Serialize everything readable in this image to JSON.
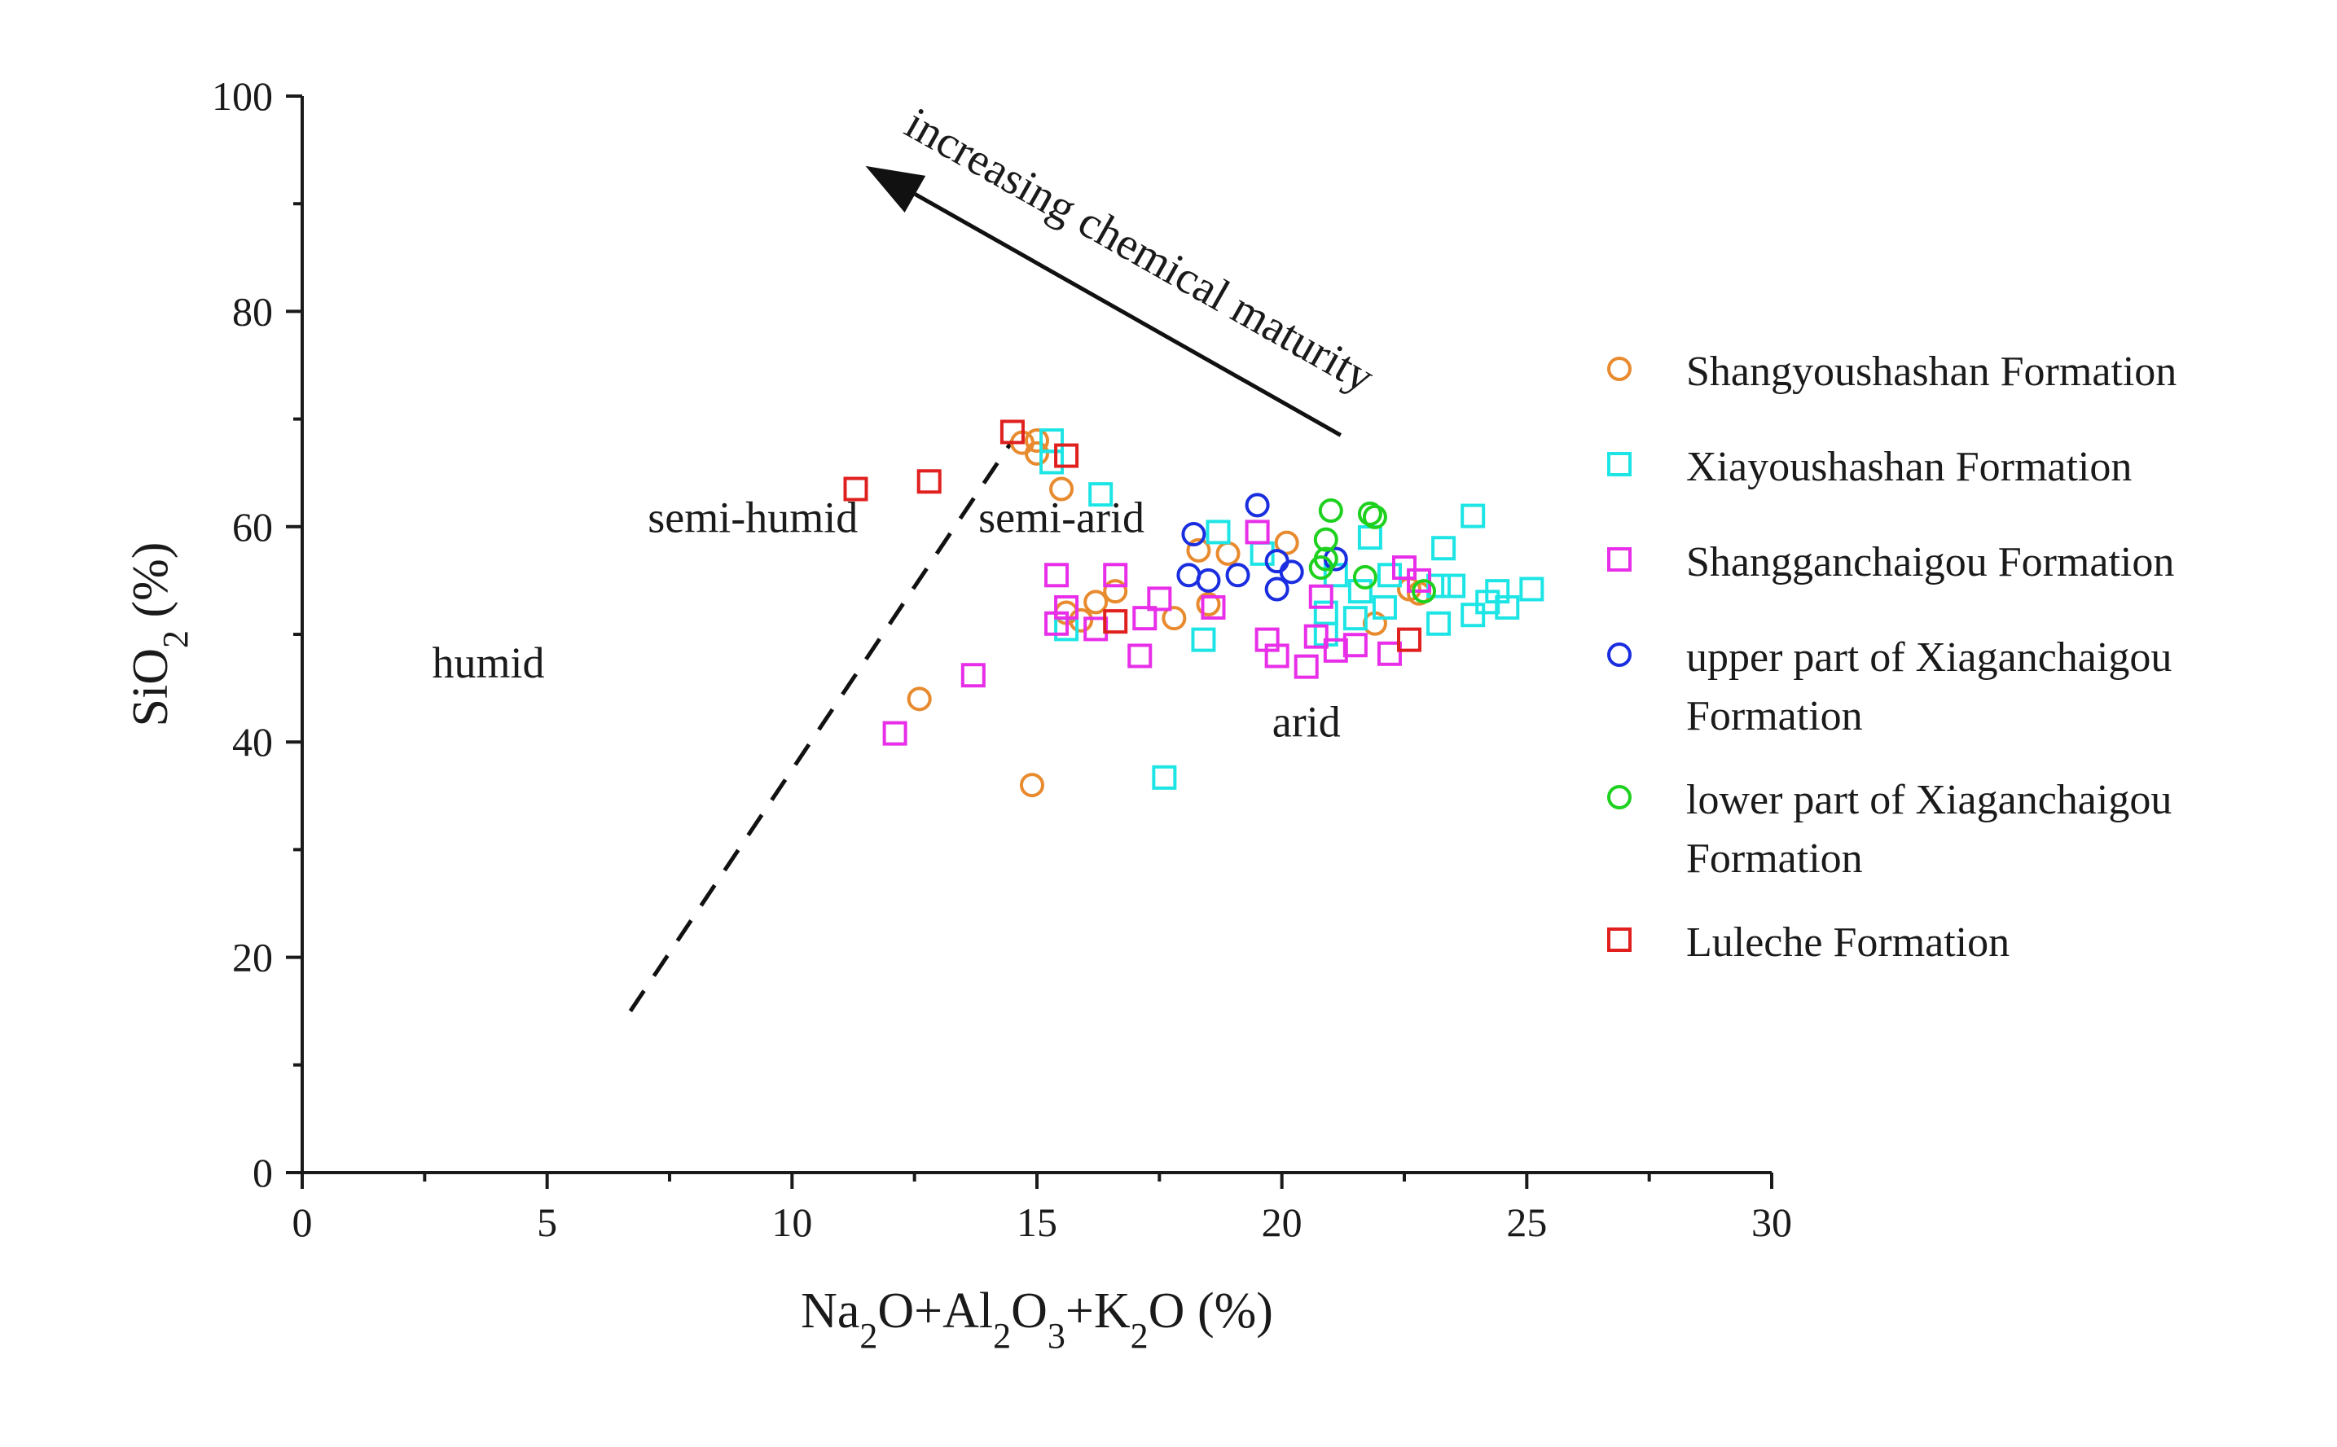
{
  "chart_data": {
    "type": "scatter",
    "title": "",
    "xlabel": "Na2O+Al2O3+K2O (%)",
    "ylabel": "SiO2 (%)",
    "xlim": [
      0,
      30
    ],
    "ylim": [
      0,
      100
    ],
    "xticks": [
      0,
      5,
      10,
      15,
      20,
      25,
      30
    ],
    "yticks": [
      0,
      20,
      40,
      60,
      80,
      100
    ],
    "grid": false,
    "legend_position": "right",
    "regions": [
      {
        "label": "humid",
        "x": 3.8,
        "y": 46
      },
      {
        "label": "semi-humid",
        "x": 9.2,
        "y": 59.5
      },
      {
        "label": "semi-arid",
        "x": 15.5,
        "y": 59.5
      },
      {
        "label": "arid",
        "x": 20.5,
        "y": 40.5
      }
    ],
    "boundary_line": {
      "label": "semi-humid / semi-arid boundary",
      "style": "dashed",
      "x": [
        6.7,
        14.5
      ],
      "y": [
        15,
        68
      ]
    },
    "trend_arrow": {
      "label": "increasing chemical maturity",
      "from": [
        21.2,
        68.5
      ],
      "to": [
        11.5,
        93.5
      ]
    },
    "series": [
      {
        "name": "Shangyoushashan Formation",
        "marker": "circle",
        "color": "#E88A2E",
        "points": [
          [
            14.7,
            67.8
          ],
          [
            15.0,
            68.0
          ],
          [
            15.0,
            66.8
          ],
          [
            15.5,
            63.5
          ],
          [
            20.1,
            58.5
          ],
          [
            18.9,
            57.5
          ],
          [
            18.3,
            57.8
          ],
          [
            18.5,
            52.8
          ],
          [
            17.8,
            51.5
          ],
          [
            16.2,
            53.0
          ],
          [
            16.6,
            54.0
          ],
          [
            15.6,
            52.0
          ],
          [
            15.9,
            51.3
          ],
          [
            21.9,
            51.0
          ],
          [
            22.8,
            53.8
          ],
          [
            22.6,
            54.2
          ],
          [
            12.6,
            44.0
          ],
          [
            14.9,
            36.0
          ]
        ]
      },
      {
        "name": "Xiayoushashan Formation",
        "marker": "square",
        "color": "#1EE5E5",
        "points": [
          [
            15.3,
            68.0
          ],
          [
            15.3,
            66.0
          ],
          [
            16.3,
            63.0
          ],
          [
            18.7,
            59.5
          ],
          [
            19.6,
            57.5
          ],
          [
            21.8,
            59.0
          ],
          [
            21.1,
            55.5
          ],
          [
            23.9,
            61.0
          ],
          [
            23.3,
            58.0
          ],
          [
            22.2,
            55.5
          ],
          [
            23.2,
            54.5
          ],
          [
            23.5,
            54.5
          ],
          [
            24.4,
            54.0
          ],
          [
            25.1,
            54.2
          ],
          [
            24.2,
            53.0
          ],
          [
            24.6,
            52.5
          ],
          [
            23.9,
            51.8
          ],
          [
            23.2,
            51.0
          ],
          [
            22.1,
            52.5
          ],
          [
            21.6,
            54.0
          ],
          [
            20.9,
            52.0
          ],
          [
            20.9,
            50.0
          ],
          [
            21.5,
            51.5
          ],
          [
            18.4,
            49.5
          ],
          [
            17.6,
            36.7
          ],
          [
            15.6,
            50.5
          ]
        ]
      },
      {
        "name": "Shangganchaigou Formation",
        "marker": "square",
        "color": "#E82EE8",
        "points": [
          [
            15.4,
            55.5
          ],
          [
            16.6,
            55.5
          ],
          [
            19.5,
            59.5
          ],
          [
            15.6,
            52.5
          ],
          [
            16.2,
            50.5
          ],
          [
            17.2,
            51.5
          ],
          [
            17.5,
            53.3
          ],
          [
            18.6,
            52.5
          ],
          [
            15.4,
            51.0
          ],
          [
            17.1,
            48.0
          ],
          [
            19.7,
            49.5
          ],
          [
            19.9,
            48.0
          ],
          [
            20.5,
            47.0
          ],
          [
            20.7,
            49.8
          ],
          [
            21.1,
            48.5
          ],
          [
            21.5,
            49.0
          ],
          [
            22.2,
            48.2
          ],
          [
            20.8,
            53.5
          ],
          [
            22.5,
            56.2
          ],
          [
            22.8,
            55.0
          ],
          [
            13.7,
            46.2
          ],
          [
            12.1,
            40.8
          ]
        ]
      },
      {
        "name": "upper part of Xiaganchaigou Formation",
        "marker": "circle",
        "color": "#1A2EE0",
        "points": [
          [
            19.5,
            62.0
          ],
          [
            18.2,
            59.3
          ],
          [
            18.1,
            55.5
          ],
          [
            18.5,
            55.0
          ],
          [
            19.1,
            55.5
          ],
          [
            19.9,
            54.2
          ],
          [
            19.9,
            56.8
          ],
          [
            20.2,
            55.8
          ],
          [
            21.1,
            57.0
          ]
        ]
      },
      {
        "name": "lower part of  Xiaganchaigou Formation",
        "marker": "circle",
        "color": "#1FD11F",
        "points": [
          [
            21.0,
            61.5
          ],
          [
            21.8,
            61.2
          ],
          [
            21.9,
            60.9
          ],
          [
            20.9,
            58.8
          ],
          [
            20.9,
            57.0
          ],
          [
            20.8,
            56.2
          ],
          [
            21.7,
            55.3
          ],
          [
            22.9,
            54.0
          ]
        ]
      },
      {
        "name": "Luleche Formation",
        "marker": "square",
        "color": "#E01F1F",
        "points": [
          [
            14.5,
            68.8
          ],
          [
            15.6,
            66.6
          ],
          [
            11.3,
            63.5
          ],
          [
            12.8,
            64.2
          ],
          [
            16.6,
            51.2
          ],
          [
            22.6,
            49.5
          ]
        ]
      }
    ]
  }
}
